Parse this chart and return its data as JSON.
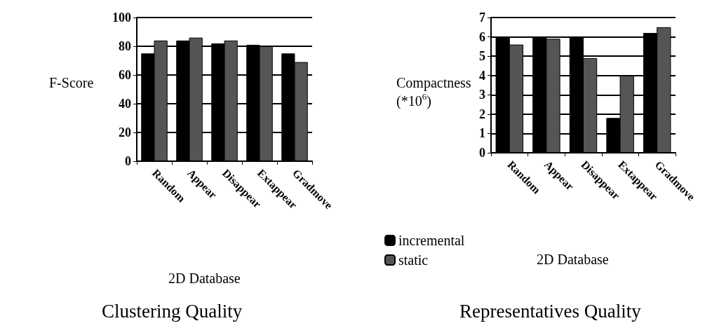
{
  "chart_data": [
    {
      "type": "bar",
      "title": "Clustering Quality",
      "xlabel": "2D Database",
      "ylabel": "F-Score",
      "categories": [
        "Random",
        "Appear",
        "Disappear",
        "Extappear",
        "Gradmove"
      ],
      "series": [
        {
          "color": "#000000",
          "values": [
            75,
            84,
            82,
            81,
            75
          ]
        },
        {
          "color": "#555555",
          "values": [
            84,
            86,
            84,
            80,
            69
          ]
        }
      ],
      "ylim": [
        0,
        100
      ],
      "yticks": [
        0,
        20,
        40,
        60,
        80,
        100
      ],
      "grid": "y"
    },
    {
      "type": "bar",
      "title": "Representatives Quality",
      "xlabel": "2D Database",
      "ylabel": "Compactness (*10$^{6}$)",
      "categories": [
        "Random",
        "Appear",
        "Disappear",
        "Extappear",
        "Gradmove"
      ],
      "series": [
        {
          "name": "incremental",
          "color": "#000000",
          "values": [
            6,
            6,
            6,
            1.8,
            6.2
          ]
        },
        {
          "name": "static",
          "color": "#555555",
          "values": [
            5.6,
            5.9,
            4.9,
            4,
            6.5
          ]
        }
      ],
      "ylim": [
        0,
        7
      ],
      "yticks": [
        0,
        1,
        2,
        3,
        4,
        5,
        6,
        7
      ],
      "grid": "y",
      "legend": "bottom left"
    }
  ]
}
